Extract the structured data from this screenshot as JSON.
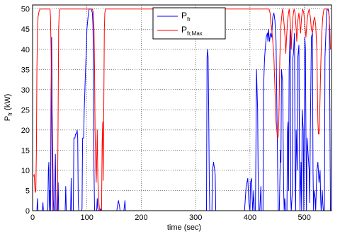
{
  "chart_data": {
    "type": "line",
    "xlabel": "time (sec)",
    "ylabel": {
      "main": "P",
      "sub": "fr",
      "unit": " (kW)"
    },
    "xlim": [
      0,
      550
    ],
    "ylim": [
      0,
      51
    ],
    "xticks": [
      0,
      100,
      200,
      300,
      400,
      500
    ],
    "yticks": [
      0,
      5,
      10,
      15,
      20,
      25,
      30,
      35,
      40,
      45,
      50
    ],
    "grid": true,
    "legend_position": "top-center",
    "series": [
      {
        "name": {
          "main": "P",
          "sub": "fr"
        },
        "color": "#0000ff",
        "points": [
          [
            0,
            0
          ],
          [
            8,
            0
          ],
          [
            9,
            3
          ],
          [
            10,
            0
          ],
          [
            18,
            0
          ],
          [
            19,
            2
          ],
          [
            20,
            0
          ],
          [
            28,
            0
          ],
          [
            29,
            10
          ],
          [
            30,
            12
          ],
          [
            31,
            0
          ],
          [
            32,
            5
          ],
          [
            33,
            0
          ],
          [
            34,
            30
          ],
          [
            35,
            43
          ],
          [
            36,
            25
          ],
          [
            37,
            15
          ],
          [
            38,
            3
          ],
          [
            39,
            0
          ],
          [
            40,
            0
          ],
          [
            42,
            14
          ],
          [
            43,
            0
          ],
          [
            46,
            0
          ],
          [
            47,
            7
          ],
          [
            48,
            0
          ],
          [
            60,
            0
          ],
          [
            61,
            6
          ],
          [
            62,
            0
          ],
          [
            70,
            0
          ],
          [
            71,
            8
          ],
          [
            72,
            0
          ],
          [
            75,
            0
          ],
          [
            76,
            18
          ],
          [
            78,
            18
          ],
          [
            79,
            19
          ],
          [
            81,
            19
          ],
          [
            82,
            20
          ],
          [
            83,
            18
          ],
          [
            84,
            2
          ],
          [
            85,
            0
          ],
          [
            90,
            0
          ],
          [
            91,
            0.5
          ],
          [
            92,
            18
          ],
          [
            94,
            18
          ],
          [
            95,
            25
          ],
          [
            96,
            29
          ],
          [
            97,
            33
          ],
          [
            98,
            37
          ],
          [
            99,
            40
          ],
          [
            100,
            45
          ],
          [
            102,
            48
          ],
          [
            104,
            50
          ],
          [
            108,
            50
          ],
          [
            110,
            49
          ],
          [
            111,
            46
          ],
          [
            112,
            38
          ],
          [
            113,
            10
          ],
          [
            114,
            0
          ],
          [
            118,
            0
          ],
          [
            119,
            3
          ],
          [
            120,
            0.5
          ],
          [
            121,
            0
          ],
          [
            124,
            0
          ],
          [
            125,
            0.5
          ],
          [
            126,
            0
          ],
          [
            155,
            0
          ],
          [
            156,
            1
          ],
          [
            158,
            2.5
          ],
          [
            160,
            1
          ],
          [
            161,
            0
          ],
          [
            168,
            0
          ],
          [
            170,
            2.5
          ],
          [
            171,
            0
          ],
          [
            190,
            0
          ],
          [
            320,
            0
          ],
          [
            321,
            38
          ],
          [
            322,
            40
          ],
          [
            323,
            38
          ],
          [
            324,
            25
          ],
          [
            325,
            8
          ],
          [
            326,
            0
          ],
          [
            330,
            0
          ],
          [
            331,
            10
          ],
          [
            333,
            12
          ],
          [
            334,
            11
          ],
          [
            336,
            9
          ],
          [
            337,
            0
          ],
          [
            390,
            0
          ],
          [
            393,
            6
          ],
          [
            396,
            8
          ],
          [
            398,
            2
          ],
          [
            400,
            0
          ],
          [
            401,
            7
          ],
          [
            403,
            8
          ],
          [
            404,
            3
          ],
          [
            405,
            0
          ],
          [
            407,
            5
          ],
          [
            408,
            0
          ],
          [
            410,
            0
          ],
          [
            411,
            15
          ],
          [
            412,
            35
          ],
          [
            413,
            30
          ],
          [
            414,
            25
          ],
          [
            415,
            10
          ],
          [
            416,
            0
          ],
          [
            418,
            0
          ],
          [
            419,
            3
          ],
          [
            420,
            6
          ],
          [
            421,
            0
          ],
          [
            423,
            0
          ],
          [
            424,
            0
          ],
          [
            425,
            30
          ],
          [
            426,
            35
          ],
          [
            427,
            38
          ],
          [
            428,
            40
          ],
          [
            430,
            43
          ],
          [
            432,
            44
          ],
          [
            433,
            42
          ],
          [
            434,
            45
          ],
          [
            436,
            42
          ],
          [
            438,
            44
          ],
          [
            440,
            43
          ],
          [
            441,
            46
          ],
          [
            442,
            48
          ],
          [
            444,
            49
          ],
          [
            446,
            47
          ],
          [
            448,
            42
          ],
          [
            450,
            20
          ],
          [
            451,
            10
          ],
          [
            452,
            0
          ],
          [
            454,
            0
          ],
          [
            455,
            7
          ],
          [
            456,
            15
          ],
          [
            457,
            12
          ],
          [
            458,
            35
          ],
          [
            460,
            32
          ],
          [
            462,
            5
          ],
          [
            463,
            0
          ],
          [
            464,
            3
          ],
          [
            466,
            0
          ],
          [
            468,
            0
          ],
          [
            469,
            20
          ],
          [
            470,
            22
          ],
          [
            471,
            5
          ],
          [
            472,
            35
          ],
          [
            473,
            40
          ],
          [
            474,
            45
          ],
          [
            475,
            3
          ],
          [
            476,
            0
          ],
          [
            478,
            5
          ],
          [
            479,
            38
          ],
          [
            480,
            39
          ],
          [
            481,
            42
          ],
          [
            482,
            44
          ],
          [
            483,
            10
          ],
          [
            484,
            0
          ],
          [
            485,
            20
          ],
          [
            487,
            10
          ],
          [
            488,
            38
          ],
          [
            490,
            41
          ],
          [
            491,
            15
          ],
          [
            492,
            0
          ],
          [
            494,
            12
          ],
          [
            495,
            0
          ],
          [
            496,
            25
          ],
          [
            498,
            20
          ],
          [
            499,
            0
          ],
          [
            500,
            22
          ],
          [
            501,
            43
          ],
          [
            502,
            40
          ],
          [
            503,
            20
          ],
          [
            504,
            0
          ],
          [
            505,
            18
          ],
          [
            507,
            14
          ],
          [
            509,
            10
          ],
          [
            510,
            2
          ],
          [
            511,
            20
          ],
          [
            513,
            43
          ],
          [
            515,
            44
          ],
          [
            516,
            10
          ],
          [
            517,
            0
          ],
          [
            518,
            5
          ],
          [
            520,
            3
          ],
          [
            521,
            0
          ],
          [
            523,
            10
          ],
          [
            525,
            12
          ],
          [
            527,
            7
          ],
          [
            529,
            10
          ],
          [
            530,
            3
          ],
          [
            531,
            0
          ],
          [
            533,
            5
          ],
          [
            534,
            2
          ],
          [
            535,
            0
          ],
          [
            537,
            0
          ],
          [
            538,
            38
          ],
          [
            540,
            45
          ],
          [
            541,
            49
          ],
          [
            542,
            50
          ],
          [
            544,
            50
          ],
          [
            546,
            48
          ],
          [
            548,
            0
          ],
          [
            550,
            0
          ]
        ]
      },
      {
        "name": {
          "main": "P",
          "sub": "fr,Max"
        },
        "color": "#ff0000",
        "points": [
          [
            2,
            8.5
          ],
          [
            3,
            9
          ],
          [
            4,
            6
          ],
          [
            5,
            4.5
          ],
          [
            6,
            5
          ],
          [
            7,
            15
          ],
          [
            8,
            35
          ],
          [
            9,
            44
          ],
          [
            10,
            48
          ],
          [
            12,
            49.5
          ],
          [
            14,
            50
          ],
          [
            32,
            50
          ],
          [
            33,
            48
          ],
          [
            34,
            40
          ],
          [
            35,
            25
          ],
          [
            36,
            10
          ],
          [
            37,
            0
          ],
          [
            45,
            0
          ],
          [
            46,
            5
          ],
          [
            47,
            25
          ],
          [
            48,
            45
          ],
          [
            49,
            49
          ],
          [
            50,
            50
          ],
          [
            110,
            50
          ],
          [
            112,
            49
          ],
          [
            113,
            45
          ],
          [
            114,
            35
          ],
          [
            115,
            20
          ],
          [
            116,
            12
          ],
          [
            117,
            7
          ],
          [
            118,
            12
          ],
          [
            119,
            20
          ],
          [
            120,
            8
          ],
          [
            121,
            5
          ],
          [
            122,
            2
          ],
          [
            123,
            0.5
          ],
          [
            124,
            0
          ],
          [
            127,
            0
          ],
          [
            128,
            17
          ],
          [
            129,
            22
          ],
          [
            130,
            7.5
          ],
          [
            131,
            25
          ],
          [
            132,
            45
          ],
          [
            133,
            49
          ],
          [
            134,
            50
          ],
          [
            435,
            50
          ],
          [
            437,
            49
          ],
          [
            438,
            47
          ],
          [
            440,
            45
          ],
          [
            442,
            42
          ],
          [
            444,
            38
          ],
          [
            446,
            30
          ],
          [
            448,
            22
          ],
          [
            450,
            19
          ],
          [
            451,
            18
          ],
          [
            452,
            18.5
          ],
          [
            453,
            22
          ],
          [
            455,
            38
          ],
          [
            457,
            46
          ],
          [
            459,
            49
          ],
          [
            460,
            50
          ],
          [
            461,
            49
          ],
          [
            463,
            46
          ],
          [
            465,
            42
          ],
          [
            466,
            39
          ],
          [
            467,
            42
          ],
          [
            469,
            47
          ],
          [
            471,
            49
          ],
          [
            472,
            50
          ],
          [
            473,
            49
          ],
          [
            475,
            44
          ],
          [
            476,
            40
          ],
          [
            477,
            44
          ],
          [
            479,
            48
          ],
          [
            481,
            50
          ],
          [
            483,
            49
          ],
          [
            485,
            45
          ],
          [
            486,
            42
          ],
          [
            488,
            47
          ],
          [
            490,
            49
          ],
          [
            492,
            46
          ],
          [
            493,
            44
          ],
          [
            495,
            48
          ],
          [
            497,
            50
          ],
          [
            499,
            49
          ],
          [
            501,
            46
          ],
          [
            503,
            43
          ],
          [
            505,
            47
          ],
          [
            507,
            49
          ],
          [
            509,
            50
          ],
          [
            511,
            48
          ],
          [
            513,
            45
          ],
          [
            515,
            44
          ],
          [
            517,
            47
          ],
          [
            519,
            48
          ],
          [
            521,
            46
          ],
          [
            523,
            40
          ],
          [
            524,
            30
          ],
          [
            525,
            22
          ],
          [
            526,
            19
          ],
          [
            527,
            19
          ],
          [
            528,
            22
          ],
          [
            530,
            35
          ],
          [
            532,
            44
          ],
          [
            534,
            48
          ],
          [
            536,
            50
          ],
          [
            543,
            50
          ],
          [
            545,
            49
          ],
          [
            547,
            45
          ],
          [
            548,
            40
          ]
        ]
      }
    ]
  }
}
